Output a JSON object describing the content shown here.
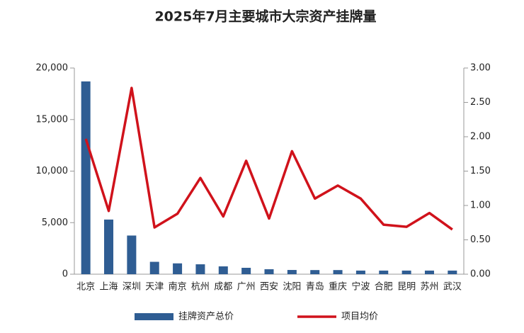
{
  "chart_data": {
    "type": "bar_line",
    "title": "2025年7月主要城市大宗资产挂牌量",
    "categories": [
      "北京",
      "上海",
      "深圳",
      "天津",
      "南京",
      "杭州",
      "成都",
      "广州",
      "西安",
      "沈阳",
      "青岛",
      "重庆",
      "宁波",
      "合肥",
      "昆明",
      "苏州",
      "武汉"
    ],
    "series": [
      {
        "name": "挂牌资产总价",
        "color": "#2f5d93",
        "type": "bar",
        "values": [
          18700,
          5300,
          3750,
          1200,
          1050,
          960,
          760,
          620,
          480,
          410,
          400,
          400,
          350,
          350,
          350,
          350,
          350
        ]
      },
      {
        "name": "项目均价",
        "color": "#d0121b",
        "type": "line",
        "axis": "y2",
        "values": [
          1.97,
          0.92,
          2.71,
          0.68,
          0.88,
          1.4,
          0.84,
          1.65,
          0.81,
          1.79,
          1.1,
          1.29,
          1.1,
          0.72,
          0.69,
          0.89,
          0.65
        ]
      }
    ],
    "ylim": [
      0,
      20000
    ],
    "yticks": [
      0,
      {
        "value": 5000,
        "label": "5,000"
      },
      {
        "value": 10000,
        "label": "10,000"
      },
      {
        "value": 15000,
        "label": "15,000"
      },
      {
        "value": 20000,
        "label": "20,000"
      }
    ],
    "y2lim": [
      0,
      3
    ],
    "y2ticks": [
      {
        "value": 0,
        "label": "0.00"
      },
      {
        "value": 0.5,
        "label": "0.50"
      },
      {
        "value": 1,
        "label": "1.00"
      },
      {
        "value": 1.5,
        "label": "1.50"
      },
      {
        "value": 2,
        "label": "2.00"
      },
      {
        "value": 2.5,
        "label": "2.50"
      },
      {
        "value": 3,
        "label": "3.00"
      }
    ],
    "legend": "bottom"
  }
}
